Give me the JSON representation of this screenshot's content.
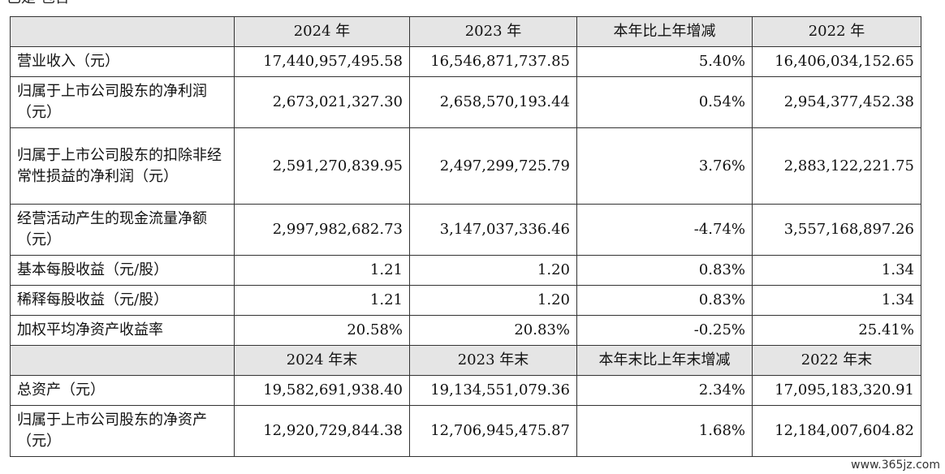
{
  "top_text": "已是  包含",
  "table": {
    "header1": [
      "",
      "2024 年",
      "2023 年",
      "本年比上年增减",
      "2022 年"
    ],
    "rows1": [
      {
        "label": "营业收入（元）",
        "c1": "17,440,957,495.58",
        "c2": "16,546,871,737.85",
        "c3": "5.40%",
        "c4": "16,406,034,152.65"
      },
      {
        "label": "归属于上市公司股东的净利润（元）",
        "c1": "2,673,021,327.30",
        "c2": "2,658,570,193.44",
        "c3": "0.54%",
        "c4": "2,954,377,452.38"
      },
      {
        "label": "归属于上市公司股东的扣除非经常性损益的净利润（元）",
        "c1": "2,591,270,839.95",
        "c2": "2,497,299,725.79",
        "c3": "3.76%",
        "c4": "2,883,122,221.75"
      },
      {
        "label": "经营活动产生的现金流量净额（元）",
        "c1": "2,997,982,682.73",
        "c2": "3,147,037,336.46",
        "c3": "-4.74%",
        "c4": "3,557,168,897.26"
      },
      {
        "label": "基本每股收益（元/股）",
        "c1": "1.21",
        "c2": "1.20",
        "c3": "0.83%",
        "c4": "1.34"
      },
      {
        "label": "稀释每股收益（元/股）",
        "c1": "1.21",
        "c2": "1.20",
        "c3": "0.83%",
        "c4": "1.34"
      },
      {
        "label": "加权平均净资产收益率",
        "c1": "20.58%",
        "c2": "20.83%",
        "c3": "-0.25%",
        "c4": "25.41%"
      }
    ],
    "header2": [
      "",
      "2024 年末",
      "2023 年末",
      "本年末比上年末增减",
      "2022 年末"
    ],
    "rows2": [
      {
        "label": "总资产（元）",
        "c1": "19,582,691,938.40",
        "c2": "19,134,551,079.36",
        "c3": "2.34%",
        "c4": "17,095,183,320.91"
      },
      {
        "label": "归属于上市公司股东的净资产（元）",
        "c1": "12,920,729,844.38",
        "c2": "12,706,945,475.87",
        "c3": "1.68%",
        "c4": "12,184,007,604.82"
      }
    ]
  },
  "watermark": "www.365jz.com"
}
